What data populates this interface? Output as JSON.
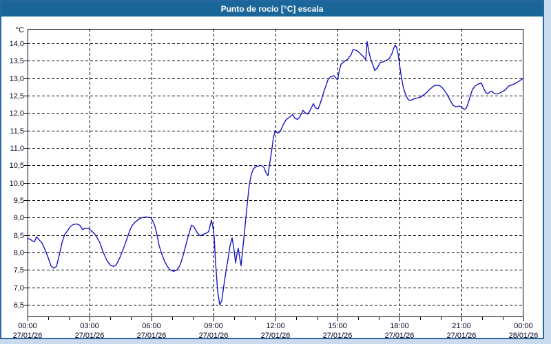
{
  "window": {
    "title": "Punto de rocío [°C] escala"
  },
  "colors": {
    "titlebar_bg": "#1b6699",
    "title_text": "#ffffff",
    "frame_border": "#2566a3",
    "page_margin": "#c9d9ee",
    "plot_bg": "#ffffff",
    "grid": "#000000",
    "axis": "#000000",
    "tick_text": "#000020",
    "line": "#1616c2"
  },
  "chart_data": {
    "type": "line",
    "title": "Punto de rocío [°C] escala",
    "xlabel": "",
    "ylabel": "°C",
    "grid": "dashed",
    "legend": "none",
    "ylim": [
      6.15,
      14.42
    ],
    "x_range_minutes": [
      0,
      1440
    ],
    "y_axis": {
      "unit": "°C",
      "values": [
        14.0,
        13.5,
        13.0,
        12.5,
        12.0,
        11.5,
        11.0,
        10.5,
        10.0,
        9.5,
        9.0,
        8.5,
        8.0,
        7.5,
        7.0,
        6.5
      ],
      "labels": [
        "14,0",
        "13,5",
        "13,0",
        "12,5",
        "12,0",
        "11,5",
        "11,0",
        "10,5",
        "10,0",
        "9,5",
        "9,0",
        "8,5",
        "8,0",
        "7,5",
        "7,0",
        "6,5"
      ]
    },
    "x_axis": {
      "major_tick_hours": 3,
      "minor_tick_hours": 1,
      "ticks": [
        {
          "hour": 0,
          "time": "00:00",
          "date": "27/01/26"
        },
        {
          "hour": 3,
          "time": "03:00",
          "date": "27/01/26"
        },
        {
          "hour": 6,
          "time": "06:00",
          "date": "27/01/26"
        },
        {
          "hour": 9,
          "time": "09:00",
          "date": "27/01/26"
        },
        {
          "hour": 12,
          "time": "12:00",
          "date": "27/01/26"
        },
        {
          "hour": 15,
          "time": "15:00",
          "date": "27/01/26"
        },
        {
          "hour": 18,
          "time": "18:00",
          "date": "27/01/26"
        },
        {
          "hour": 21,
          "time": "21:00",
          "date": "27/01/26"
        },
        {
          "hour": 24,
          "time": "00:00",
          "date": "28/01/26"
        }
      ]
    },
    "series": [
      {
        "name": "Punto de rocío",
        "color": "#1616c2",
        "points": [
          [
            0,
            8.4
          ],
          [
            8,
            8.38
          ],
          [
            14,
            8.33
          ],
          [
            20,
            8.31
          ],
          [
            26,
            8.45
          ],
          [
            34,
            8.36
          ],
          [
            42,
            8.27
          ],
          [
            50,
            8.1
          ],
          [
            60,
            7.85
          ],
          [
            68,
            7.62
          ],
          [
            76,
            7.55
          ],
          [
            84,
            7.6
          ],
          [
            92,
            7.92
          ],
          [
            100,
            8.28
          ],
          [
            108,
            8.52
          ],
          [
            116,
            8.62
          ],
          [
            124,
            8.74
          ],
          [
            132,
            8.8
          ],
          [
            142,
            8.82
          ],
          [
            152,
            8.78
          ],
          [
            160,
            8.66
          ],
          [
            168,
            8.7
          ],
          [
            178,
            8.68
          ],
          [
            188,
            8.6
          ],
          [
            196,
            8.52
          ],
          [
            202,
            8.42
          ],
          [
            210,
            8.28
          ],
          [
            220,
            8.0
          ],
          [
            230,
            7.78
          ],
          [
            240,
            7.64
          ],
          [
            250,
            7.6
          ],
          [
            258,
            7.65
          ],
          [
            268,
            7.85
          ],
          [
            278,
            8.1
          ],
          [
            286,
            8.32
          ],
          [
            294,
            8.55
          ],
          [
            302,
            8.75
          ],
          [
            312,
            8.87
          ],
          [
            322,
            8.95
          ],
          [
            332,
            9.0
          ],
          [
            345,
            9.02
          ],
          [
            358,
            9.0
          ],
          [
            364,
            8.9
          ],
          [
            370,
            8.75
          ],
          [
            376,
            8.5
          ],
          [
            382,
            8.2
          ],
          [
            390,
            7.95
          ],
          [
            398,
            7.75
          ],
          [
            406,
            7.6
          ],
          [
            414,
            7.5
          ],
          [
            424,
            7.46
          ],
          [
            434,
            7.5
          ],
          [
            442,
            7.62
          ],
          [
            450,
            7.85
          ],
          [
            458,
            8.15
          ],
          [
            466,
            8.45
          ],
          [
            472,
            8.65
          ],
          [
            476,
            8.78
          ],
          [
            482,
            8.75
          ],
          [
            488,
            8.65
          ],
          [
            494,
            8.55
          ],
          [
            502,
            8.48
          ],
          [
            510,
            8.52
          ],
          [
            518,
            8.55
          ],
          [
            526,
            8.6
          ],
          [
            534,
            8.93
          ],
          [
            538,
            8.75
          ],
          [
            542,
            8.45
          ],
          [
            546,
            7.7
          ],
          [
            552,
            6.9
          ],
          [
            558,
            6.5
          ],
          [
            564,
            6.62
          ],
          [
            570,
            7.05
          ],
          [
            576,
            7.45
          ],
          [
            582,
            7.8
          ],
          [
            588,
            8.2
          ],
          [
            594,
            8.42
          ],
          [
            600,
            8.05
          ],
          [
            604,
            7.7
          ],
          [
            608,
            7.95
          ],
          [
            612,
            8.12
          ],
          [
            616,
            7.85
          ],
          [
            620,
            7.62
          ],
          [
            626,
            8.2
          ],
          [
            632,
            8.8
          ],
          [
            638,
            9.4
          ],
          [
            644,
            9.95
          ],
          [
            650,
            10.25
          ],
          [
            656,
            10.4
          ],
          [
            662,
            10.45
          ],
          [
            670,
            10.48
          ],
          [
            678,
            10.5
          ],
          [
            686,
            10.45
          ],
          [
            692,
            10.3
          ],
          [
            698,
            10.2
          ],
          [
            704,
            10.6
          ],
          [
            710,
            11.0
          ],
          [
            714,
            11.3
          ],
          [
            718,
            11.45
          ],
          [
            720,
            11.5
          ],
          [
            726,
            11.42
          ],
          [
            734,
            11.47
          ],
          [
            740,
            11.62
          ],
          [
            750,
            11.8
          ],
          [
            760,
            11.88
          ],
          [
            770,
            11.96
          ],
          [
            776,
            11.85
          ],
          [
            784,
            11.82
          ],
          [
            790,
            11.88
          ],
          [
            800,
            12.08
          ],
          [
            806,
            12.01
          ],
          [
            814,
            11.97
          ],
          [
            820,
            12.07
          ],
          [
            830,
            12.27
          ],
          [
            836,
            12.15
          ],
          [
            844,
            12.12
          ],
          [
            850,
            12.28
          ],
          [
            860,
            12.6
          ],
          [
            867,
            12.8
          ],
          [
            873,
            12.97
          ],
          [
            880,
            13.04
          ],
          [
            890,
            13.07
          ],
          [
            900,
            12.95
          ],
          [
            905,
            13.2
          ],
          [
            910,
            13.4
          ],
          [
            920,
            13.48
          ],
          [
            930,
            13.55
          ],
          [
            940,
            13.68
          ],
          [
            945,
            13.82
          ],
          [
            955,
            13.8
          ],
          [
            965,
            13.72
          ],
          [
            975,
            13.62
          ],
          [
            982,
            13.53
          ],
          [
            986,
            14.05
          ],
          [
            992,
            13.72
          ],
          [
            998,
            13.5
          ],
          [
            1004,
            13.35
          ],
          [
            1008,
            13.22
          ],
          [
            1016,
            13.3
          ],
          [
            1024,
            13.45
          ],
          [
            1032,
            13.47
          ],
          [
            1040,
            13.5
          ],
          [
            1050,
            13.56
          ],
          [
            1058,
            13.7
          ],
          [
            1064,
            13.88
          ],
          [
            1068,
            13.95
          ],
          [
            1072,
            13.87
          ],
          [
            1076,
            13.7
          ],
          [
            1080,
            13.4
          ],
          [
            1086,
            13.0
          ],
          [
            1092,
            12.7
          ],
          [
            1100,
            12.48
          ],
          [
            1106,
            12.38
          ],
          [
            1112,
            12.36
          ],
          [
            1120,
            12.4
          ],
          [
            1130,
            12.43
          ],
          [
            1140,
            12.45
          ],
          [
            1150,
            12.52
          ],
          [
            1160,
            12.6
          ],
          [
            1170,
            12.7
          ],
          [
            1180,
            12.78
          ],
          [
            1188,
            12.8
          ],
          [
            1196,
            12.79
          ],
          [
            1204,
            12.73
          ],
          [
            1212,
            12.63
          ],
          [
            1220,
            12.5
          ],
          [
            1228,
            12.35
          ],
          [
            1236,
            12.22
          ],
          [
            1244,
            12.18
          ],
          [
            1252,
            12.2
          ],
          [
            1260,
            12.18
          ],
          [
            1268,
            12.1
          ],
          [
            1274,
            12.14
          ],
          [
            1280,
            12.3
          ],
          [
            1286,
            12.5
          ],
          [
            1292,
            12.68
          ],
          [
            1300,
            12.78
          ],
          [
            1310,
            12.84
          ],
          [
            1318,
            12.86
          ],
          [
            1324,
            12.72
          ],
          [
            1330,
            12.6
          ],
          [
            1336,
            12.55
          ],
          [
            1342,
            12.6
          ],
          [
            1348,
            12.63
          ],
          [
            1354,
            12.57
          ],
          [
            1362,
            12.55
          ],
          [
            1370,
            12.57
          ],
          [
            1380,
            12.62
          ],
          [
            1388,
            12.67
          ],
          [
            1396,
            12.77
          ],
          [
            1404,
            12.8
          ],
          [
            1412,
            12.83
          ],
          [
            1420,
            12.87
          ],
          [
            1428,
            12.92
          ],
          [
            1440,
            13.0
          ]
        ]
      }
    ]
  }
}
